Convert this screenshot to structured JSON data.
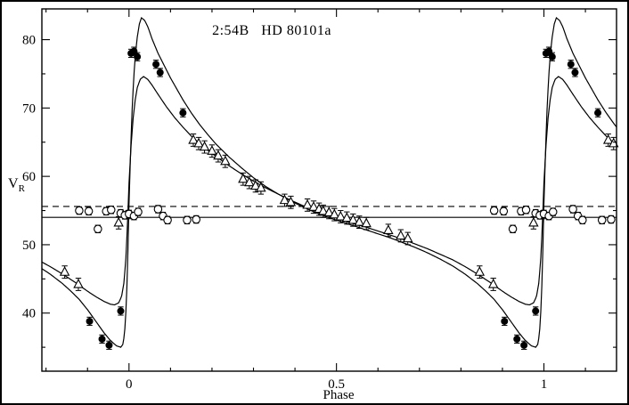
{
  "figure": {
    "title": "2:54B   HD 80101a",
    "x_axis_label": "Phase",
    "y_axis_label_main": "V",
    "y_axis_label_sub": "R"
  },
  "colors": {
    "ink": "#000000",
    "background": "#ffffff"
  },
  "chart_data": {
    "type": "scatter",
    "title": "2:54B HD 80101a",
    "xlabel": "Phase",
    "ylabel": "V_R",
    "xlim": [
      -0.21,
      1.175
    ],
    "ylim": [
      31.5,
      84.5
    ],
    "x_major_ticks": [
      0,
      0.5,
      1
    ],
    "x_major_tick_labels": [
      "0",
      "0.5",
      "1"
    ],
    "x_minor_ticks": [
      -0.2,
      -0.1,
      0.1,
      0.2,
      0.3,
      0.4,
      0.6,
      0.7,
      0.8,
      0.9,
      1.1
    ],
    "y_major_ticks": [
      40,
      50,
      60,
      70,
      80
    ],
    "y_major_tick_labels": [
      "40",
      "50",
      "60",
      "70",
      "80"
    ],
    "y_minor_ticks": [
      35,
      45,
      55,
      65,
      75
    ],
    "grid": false,
    "legend": false,
    "phase_fold_duplicate": true,
    "reference_lines": [
      {
        "name": "systemic-velocity-solid-line",
        "style": "solid",
        "y": 54.0
      },
      {
        "name": "tertiary-mean-dashed-line",
        "style": "dashed",
        "y": 55.6
      }
    ],
    "series": [
      {
        "name": "primary component (filled circles)",
        "symbol": "filled-circle",
        "err": 0.6,
        "points": [
          [
            0.905,
            38.8
          ],
          [
            0.935,
            36.2
          ],
          [
            0.952,
            35.3
          ],
          [
            0.98,
            40.3
          ],
          [
            0.998,
            54.4
          ],
          [
            0.005,
            78.0
          ],
          [
            0.012,
            78.3
          ],
          [
            0.02,
            77.5
          ],
          [
            0.065,
            76.4
          ],
          [
            0.075,
            75.2
          ],
          [
            0.13,
            69.3
          ]
        ]
      },
      {
        "name": "secondary component (open triangles)",
        "symbol": "open-triangle",
        "err": 0.9,
        "points": [
          [
            0.845,
            46.0
          ],
          [
            0.878,
            44.2
          ],
          [
            0.155,
            65.3
          ],
          [
            0.168,
            64.8
          ],
          [
            0.182,
            64.3
          ],
          [
            0.2,
            63.7
          ],
          [
            0.215,
            63.0
          ],
          [
            0.232,
            62.2
          ],
          [
            0.275,
            59.6
          ],
          [
            0.29,
            59.1
          ],
          [
            0.305,
            58.6
          ],
          [
            0.318,
            58.3
          ],
          [
            0.375,
            56.5
          ],
          [
            0.39,
            56.2
          ],
          [
            0.43,
            55.8
          ],
          [
            0.445,
            55.5
          ],
          [
            0.458,
            55.2
          ],
          [
            0.468,
            54.9
          ],
          [
            0.482,
            54.7
          ],
          [
            0.495,
            54.4
          ],
          [
            0.51,
            54.1
          ],
          [
            0.525,
            53.9
          ],
          [
            0.54,
            53.6
          ],
          [
            0.555,
            53.3
          ],
          [
            0.572,
            53.1
          ],
          [
            0.625,
            52.1
          ],
          [
            0.655,
            51.3
          ],
          [
            0.672,
            50.9
          ],
          [
            0.975,
            53.2
          ]
        ]
      },
      {
        "name": "tertiary component (open circles)",
        "symbol": "open-circle",
        "err": 0.55,
        "points": [
          [
            0.88,
            55.0
          ],
          [
            0.903,
            54.9
          ],
          [
            0.925,
            52.3
          ],
          [
            0.945,
            54.9
          ],
          [
            0.957,
            55.1
          ],
          [
            0.98,
            54.6
          ],
          [
            0.99,
            54.3
          ],
          [
            0.0,
            54.5
          ],
          [
            0.012,
            54.2
          ],
          [
            0.022,
            54.8
          ],
          [
            0.07,
            55.2
          ],
          [
            0.082,
            54.2
          ],
          [
            0.093,
            53.6
          ],
          [
            0.14,
            53.6
          ],
          [
            0.162,
            53.7
          ]
        ]
      }
    ],
    "curves": [
      {
        "name": "primary RV curve",
        "cycle": [
          [
            0.0,
            56.0
          ],
          [
            0.004,
            64.0
          ],
          [
            0.008,
            70.5
          ],
          [
            0.012,
            75.0
          ],
          [
            0.016,
            78.2
          ],
          [
            0.02,
            80.4
          ],
          [
            0.025,
            82.3
          ],
          [
            0.03,
            83.2
          ],
          [
            0.038,
            82.8
          ],
          [
            0.046,
            81.8
          ],
          [
            0.055,
            80.2
          ],
          [
            0.07,
            78.0
          ],
          [
            0.085,
            76.2
          ],
          [
            0.1,
            74.4
          ],
          [
            0.115,
            72.8
          ],
          [
            0.13,
            71.2
          ],
          [
            0.15,
            69.3
          ],
          [
            0.17,
            67.6
          ],
          [
            0.19,
            66.1
          ],
          [
            0.21,
            64.7
          ],
          [
            0.24,
            62.9
          ],
          [
            0.27,
            61.3
          ],
          [
            0.3,
            59.8
          ],
          [
            0.33,
            58.5
          ],
          [
            0.36,
            57.4
          ],
          [
            0.39,
            56.4
          ],
          [
            0.42,
            55.5
          ],
          [
            0.45,
            54.7
          ],
          [
            0.48,
            54.0
          ],
          [
            0.51,
            53.4
          ],
          [
            0.54,
            52.8
          ],
          [
            0.57,
            52.2
          ],
          [
            0.6,
            51.6
          ],
          [
            0.63,
            51.0
          ],
          [
            0.66,
            50.3
          ],
          [
            0.69,
            49.6
          ],
          [
            0.72,
            48.8
          ],
          [
            0.75,
            47.9
          ],
          [
            0.78,
            46.9
          ],
          [
            0.81,
            45.7
          ],
          [
            0.84,
            44.3
          ],
          [
            0.86,
            43.2
          ],
          [
            0.88,
            42.0
          ],
          [
            0.9,
            40.5
          ],
          [
            0.92,
            38.8
          ],
          [
            0.94,
            37.1
          ],
          [
            0.955,
            36.0
          ],
          [
            0.97,
            35.2
          ],
          [
            0.98,
            35.0
          ],
          [
            0.985,
            35.4
          ],
          [
            0.989,
            36.8
          ],
          [
            0.992,
            39.5
          ],
          [
            0.995,
            44.0
          ],
          [
            0.998,
            50.5
          ]
        ]
      },
      {
        "name": "secondary RV curve",
        "cycle": [
          [
            0.0,
            59.0
          ],
          [
            0.005,
            64.5
          ],
          [
            0.01,
            68.5
          ],
          [
            0.015,
            71.2
          ],
          [
            0.02,
            73.0
          ],
          [
            0.027,
            74.2
          ],
          [
            0.035,
            74.6
          ],
          [
            0.045,
            74.2
          ],
          [
            0.055,
            73.4
          ],
          [
            0.07,
            72.0
          ],
          [
            0.09,
            70.2
          ],
          [
            0.11,
            68.6
          ],
          [
            0.13,
            67.2
          ],
          [
            0.15,
            65.9
          ],
          [
            0.17,
            64.8
          ],
          [
            0.19,
            63.8
          ],
          [
            0.21,
            62.9
          ],
          [
            0.24,
            61.6
          ],
          [
            0.27,
            60.4
          ],
          [
            0.3,
            59.3
          ],
          [
            0.33,
            58.3
          ],
          [
            0.36,
            57.4
          ],
          [
            0.39,
            56.5
          ],
          [
            0.42,
            55.7
          ],
          [
            0.45,
            55.0
          ],
          [
            0.48,
            54.3
          ],
          [
            0.51,
            53.7
          ],
          [
            0.54,
            53.1
          ],
          [
            0.57,
            52.6
          ],
          [
            0.6,
            52.0
          ],
          [
            0.63,
            51.4
          ],
          [
            0.66,
            50.8
          ],
          [
            0.69,
            50.1
          ],
          [
            0.72,
            49.4
          ],
          [
            0.75,
            48.6
          ],
          [
            0.78,
            47.8
          ],
          [
            0.81,
            46.8
          ],
          [
            0.84,
            45.7
          ],
          [
            0.87,
            44.5
          ],
          [
            0.9,
            43.2
          ],
          [
            0.92,
            42.4
          ],
          [
            0.94,
            41.7
          ],
          [
            0.955,
            41.3
          ],
          [
            0.965,
            41.2
          ],
          [
            0.975,
            41.5
          ],
          [
            0.982,
            42.4
          ],
          [
            0.988,
            44.5
          ],
          [
            0.993,
            48.5
          ],
          [
            0.997,
            54.0
          ]
        ]
      }
    ]
  }
}
